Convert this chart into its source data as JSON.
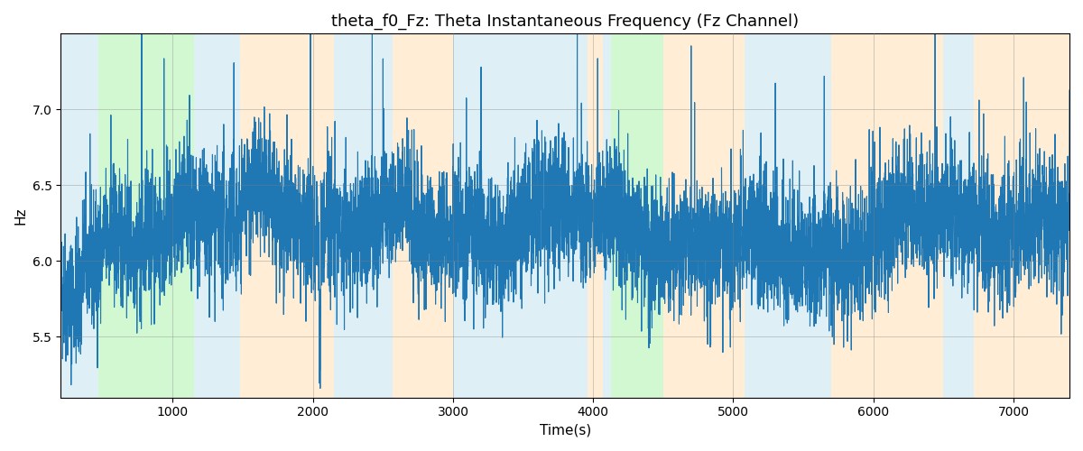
{
  "title": "theta_f0_Fz: Theta Instantaneous Frequency (Fz Channel)",
  "xlabel": "Time(s)",
  "ylabel": "Hz",
  "xlim": [
    200,
    7400
  ],
  "ylim": [
    5.1,
    7.5
  ],
  "yticks": [
    5.5,
    6.0,
    6.5,
    7.0
  ],
  "xticks": [
    1000,
    2000,
    3000,
    4000,
    5000,
    6000,
    7000
  ],
  "bg_bands": [
    {
      "xmin": 200,
      "xmax": 470,
      "color": "#add8e6",
      "alpha": 0.4
    },
    {
      "xmin": 470,
      "xmax": 1150,
      "color": "#90ee90",
      "alpha": 0.4
    },
    {
      "xmin": 1150,
      "xmax": 1480,
      "color": "#add8e6",
      "alpha": 0.4
    },
    {
      "xmin": 1480,
      "xmax": 2150,
      "color": "#ffdead",
      "alpha": 0.5
    },
    {
      "xmin": 2150,
      "xmax": 2570,
      "color": "#add8e6",
      "alpha": 0.4
    },
    {
      "xmin": 2570,
      "xmax": 3000,
      "color": "#ffdead",
      "alpha": 0.5
    },
    {
      "xmin": 3000,
      "xmax": 3960,
      "color": "#add8e6",
      "alpha": 0.4
    },
    {
      "xmin": 3960,
      "xmax": 4070,
      "color": "#ffdead",
      "alpha": 0.5
    },
    {
      "xmin": 4070,
      "xmax": 4130,
      "color": "#add8e6",
      "alpha": 0.4
    },
    {
      "xmin": 4130,
      "xmax": 4500,
      "color": "#90ee90",
      "alpha": 0.4
    },
    {
      "xmin": 4500,
      "xmax": 5080,
      "color": "#ffdead",
      "alpha": 0.5
    },
    {
      "xmin": 5080,
      "xmax": 5700,
      "color": "#add8e6",
      "alpha": 0.4
    },
    {
      "xmin": 5700,
      "xmax": 6500,
      "color": "#ffdead",
      "alpha": 0.5
    },
    {
      "xmin": 6500,
      "xmax": 6720,
      "color": "#add8e6",
      "alpha": 0.4
    },
    {
      "xmin": 6720,
      "xmax": 7400,
      "color": "#ffdead",
      "alpha": 0.5
    }
  ],
  "line_color": "#1f77b4",
  "line_width": 0.8,
  "grid_color": "gray",
  "grid_alpha": 0.5,
  "grid_linewidth": 0.5,
  "seed": 42,
  "n_points": 7200,
  "base_freq": 6.18,
  "noise_std": 0.22,
  "spike_prob": 0.008,
  "spike_std": 0.7
}
